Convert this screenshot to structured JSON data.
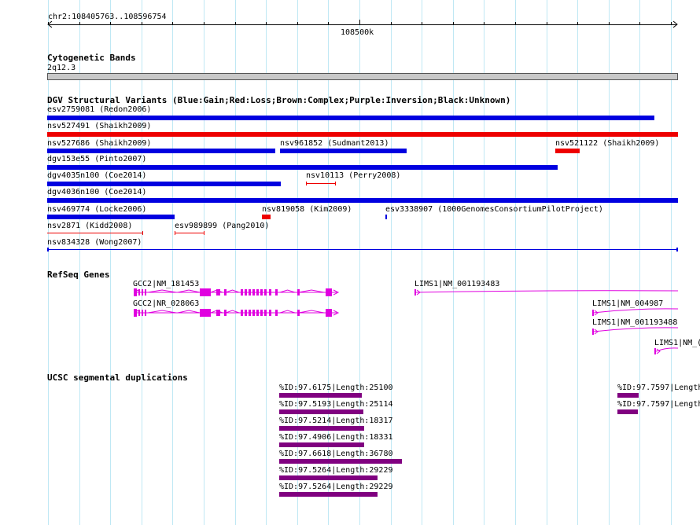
{
  "ruler": {
    "range_label": "chr2:108405763..108596754",
    "center_label": "108500k"
  },
  "cyto": {
    "title": "Cytogenetic Bands",
    "band": "2q12.3"
  },
  "dgv": {
    "title": "DGV Structural Variants (Blue:Gain;Red:Loss;Brown:Complex;Purple:Inversion;Black:Unknown)",
    "colors": {
      "gain": "#0000e0",
      "loss": "#ee0000"
    },
    "items": [
      {
        "label": "esv2759081 (Redon2006)",
        "type": "gain"
      },
      {
        "label": "nsv527491 (Shaikh2009)",
        "type": "loss"
      },
      {
        "label": "nsv527686 (Shaikh2009)",
        "type": "gain"
      },
      {
        "label": "nsv961852 (Sudmant2013)",
        "type": "gain"
      },
      {
        "label": "nsv521122 (Shaikh2009)",
        "type": "loss"
      },
      {
        "label": "dgv153e55 (Pinto2007)",
        "type": "gain"
      },
      {
        "label": "dgv4035n100 (Coe2014)",
        "type": "gain"
      },
      {
        "label": "nsv10113 (Perry2008)",
        "type": "loss"
      },
      {
        "label": "dgv4036n100 (Coe2014)",
        "type": "gain"
      },
      {
        "label": "nsv469774 (Locke2006)",
        "type": "gain"
      },
      {
        "label": "nsv819058 (Kim2009)",
        "type": "loss"
      },
      {
        "label": "esv3338907 (1000GenomesConsortiumPilotProject)",
        "type": "gain"
      },
      {
        "label": "nsv2871 (Kidd2008)",
        "type": "loss"
      },
      {
        "label": "esv989899 (Pang2010)",
        "type": "loss"
      },
      {
        "label": "nsv834328 (Wong2007)",
        "type": "gain"
      }
    ]
  },
  "refseq": {
    "title": "RefSeq Genes",
    "color": "#e000e0",
    "genes": [
      {
        "label": "GCC2|NM_181453"
      },
      {
        "label": "GCC2|NR_028063"
      },
      {
        "label": "LIMS1|NM_001193483"
      },
      {
        "label": "LIMS1|NM_004987"
      },
      {
        "label": "LIMS1|NM_001193488"
      },
      {
        "label": "LIMS1|NM_("
      }
    ]
  },
  "segdup": {
    "title": "UCSC segmental duplications",
    "color": "#800080",
    "items": [
      {
        "label": "%ID:97.6175|Length:25100"
      },
      {
        "label": "%ID:97.5193|Length:25114"
      },
      {
        "label": "%ID:97.5214|Length:18317"
      },
      {
        "label": "%ID:97.4906|Length:18331"
      },
      {
        "label": "%ID:97.6618|Length:36780"
      },
      {
        "label": "%ID:97.5264|Length:29229"
      },
      {
        "label": "%ID:97.5264|Length:29229"
      },
      {
        "label": "%ID:97.7597|Length"
      },
      {
        "label": "%ID:97.7597|Length"
      }
    ]
  }
}
